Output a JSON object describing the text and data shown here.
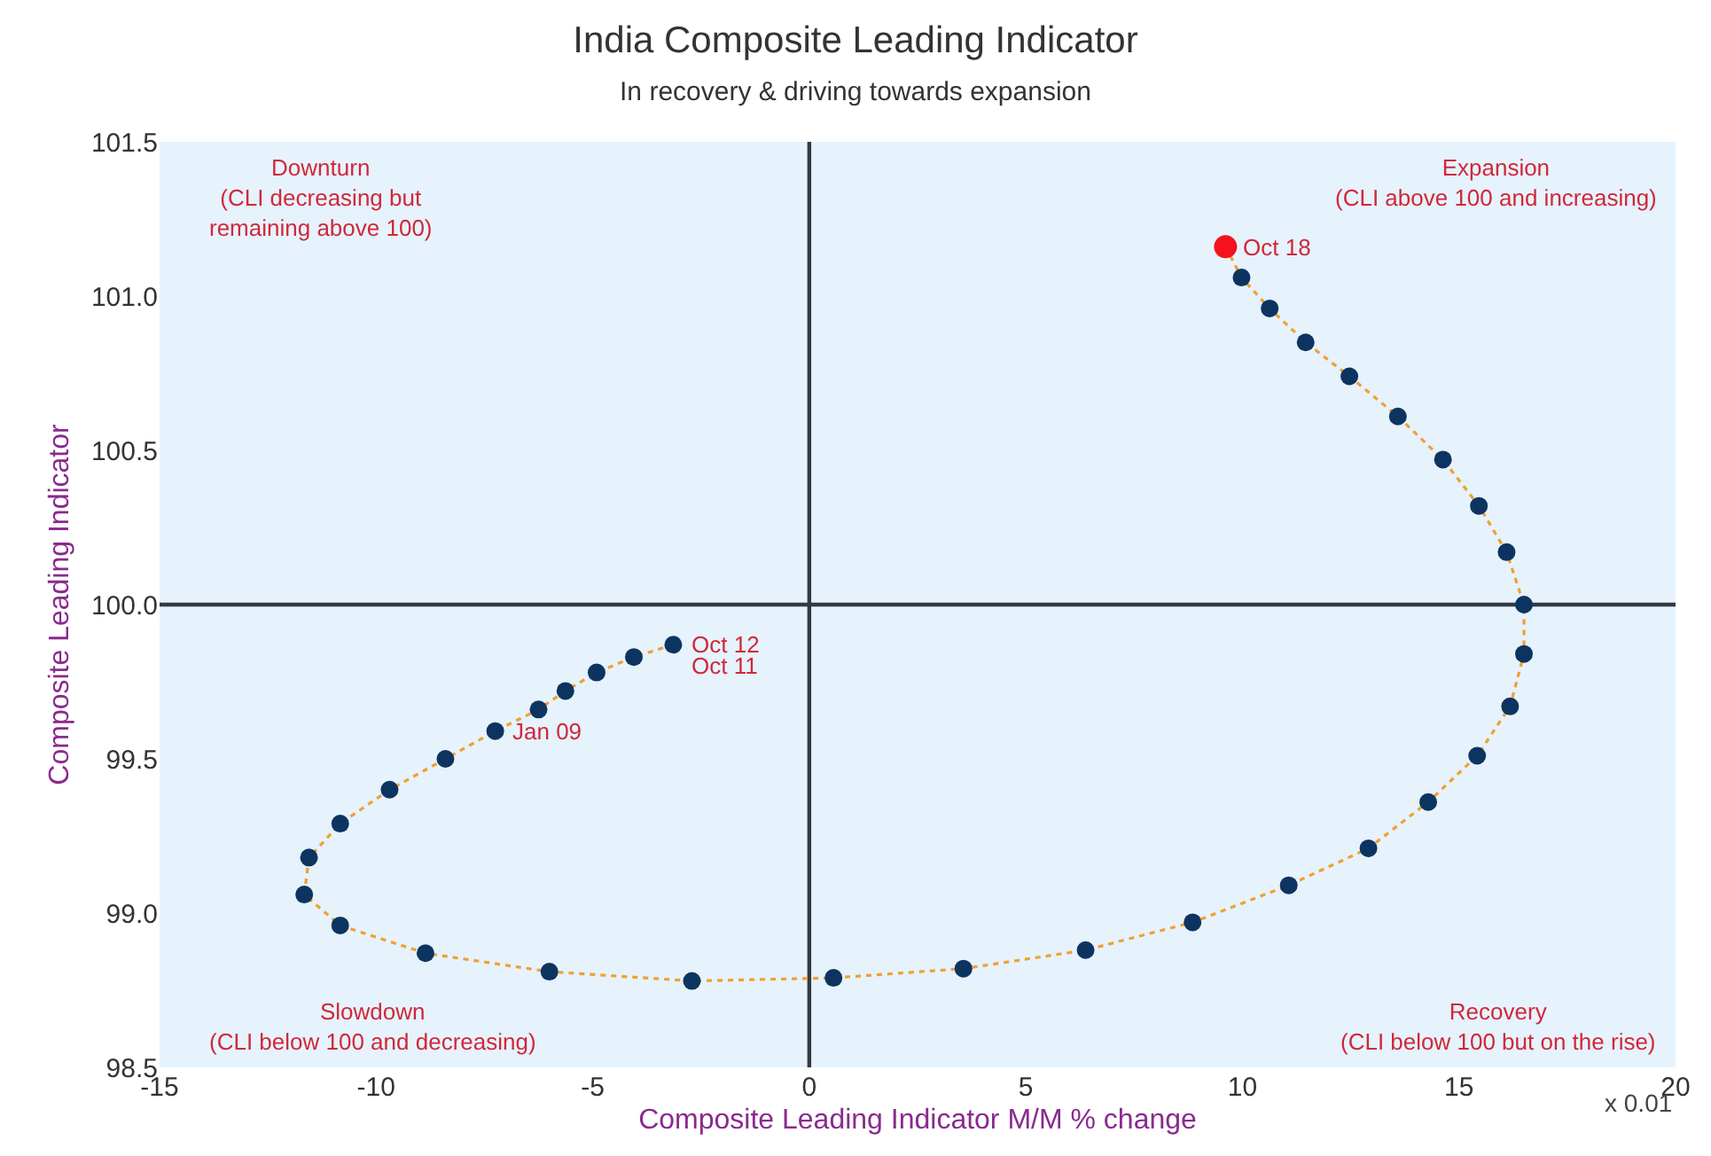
{
  "chart_data": {
    "type": "scatter",
    "title": "India Composite Leading Indicator",
    "subtitle": "In recovery & driving towards expansion",
    "xlabel": "Composite Leading Indicator M/M % change",
    "ylabel": "Composite Leading Indicator",
    "xlim": [
      -15,
      20
    ],
    "xticks": [
      -15,
      -10,
      -5,
      0,
      5,
      10,
      15,
      20
    ],
    "ylim": [
      98.5,
      101.5
    ],
    "yticks": [
      {
        "value": 98.5,
        "label": "98.5"
      },
      {
        "value": 99,
        "label": "99.0"
      },
      {
        "value": 99.5,
        "label": "99.5"
      },
      {
        "value": 100,
        "label": "100.0"
      },
      {
        "value": 100.5,
        "label": "100.5"
      },
      {
        "value": 101,
        "label": "101.0"
      },
      {
        "value": 101.5,
        "label": "101.5"
      }
    ],
    "grid": false,
    "series": [
      {
        "type": "line",
        "color": "#f0a030",
        "line_style": "dotted",
        "marker": "none",
        "x": [
          -3.14,
          -4.05,
          -4.91,
          -5.63,
          -6.25,
          -7.25,
          -8.4,
          -9.69,
          -10.83,
          -11.55,
          -11.66,
          -10.83,
          -8.86,
          -6.0,
          -2.71,
          0.56,
          3.56,
          6.38,
          8.85,
          11.07,
          12.91,
          14.29,
          15.42,
          16.18,
          16.5,
          16.5,
          16.1,
          15.46,
          14.63,
          13.59,
          12.47,
          11.46,
          10.63,
          9.98,
          9.61
        ],
        "values": [
          99.87,
          99.83,
          99.78,
          99.72,
          99.66,
          99.59,
          99.5,
          99.4,
          99.29,
          99.18,
          99.06,
          98.96,
          98.87,
          98.81,
          98.78,
          98.79,
          98.82,
          98.88,
          98.97,
          99.09,
          99.21,
          99.36,
          99.51,
          99.67,
          99.84,
          100.0,
          100.17,
          100.32,
          100.47,
          100.61,
          100.74,
          100.85,
          100.96,
          101.06,
          101.16
        ]
      },
      {
        "type": "scatter",
        "color": "#0d3461",
        "marker": "circle",
        "x": [
          -3.14,
          -4.05,
          -4.91,
          -5.63,
          -6.25,
          -7.25,
          -8.4,
          -9.69,
          -10.83,
          -11.55,
          -11.66,
          -10.83,
          -8.86,
          -6.0,
          -2.71,
          0.56,
          3.56,
          6.38,
          8.85,
          11.07,
          12.91,
          14.29,
          15.42,
          16.18,
          16.5,
          16.5,
          16.1,
          15.46,
          14.63,
          13.59,
          12.47,
          11.46,
          10.63,
          9.98
        ],
        "values": [
          99.87,
          99.83,
          99.78,
          99.72,
          99.66,
          99.59,
          99.5,
          99.4,
          99.29,
          99.18,
          99.06,
          98.96,
          98.87,
          98.81,
          98.78,
          98.79,
          98.82,
          98.88,
          98.97,
          99.09,
          99.21,
          99.36,
          99.51,
          99.67,
          99.84,
          100.0,
          100.17,
          100.32,
          100.47,
          100.61,
          100.74,
          100.85,
          100.96,
          101.06
        ]
      },
      {
        "type": "scatter",
        "color": "#f5121c",
        "marker": "circle",
        "x": [
          9.61
        ],
        "values": [
          101.16
        ]
      }
    ],
    "ref_lines": [
      {
        "axis": "x",
        "value": 0,
        "color": "#333a40"
      },
      {
        "axis": "y",
        "value": 100,
        "color": "#333a40"
      }
    ],
    "annotations": [
      "Downturn\n(CLI decreasing but\nremaining above 100)",
      "Expansion\n(CLI above 100 and increasing)",
      "Slowdown\n(CLI below 100 and decreasing)",
      "Recovery\n(CLI below 100 but on the rise)",
      {
        "text": "Oct 12",
        "x": -3.14,
        "y": 99.87
      },
      "Oct 11",
      {
        "text": "Jan 09",
        "x": -7.25,
        "y": 99.59
      },
      {
        "text": "Oct 18",
        "x": 9.61,
        "y": 101.16
      },
      "x 0.01"
    ]
  }
}
